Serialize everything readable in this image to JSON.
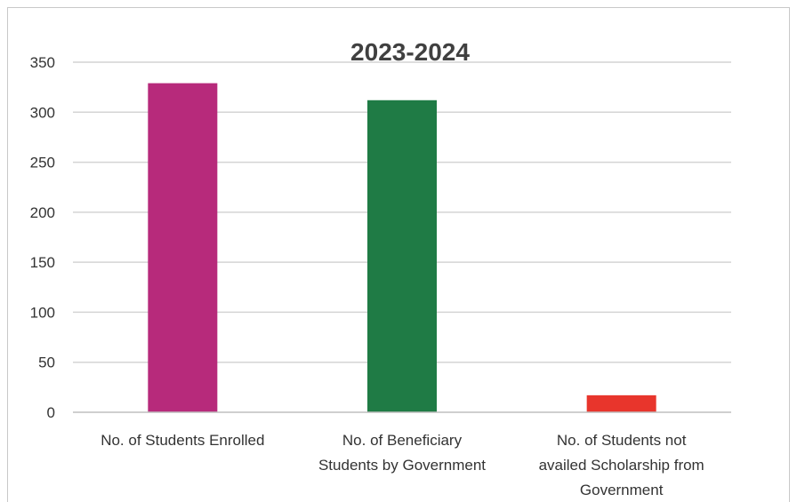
{
  "chart_data": {
    "type": "bar",
    "title": "2023-2024",
    "categories": [
      [
        "No. of Students Enrolled"
      ],
      [
        "No. of Beneficiary",
        "Students by Government"
      ],
      [
        "No. of Students not",
        "availed Scholarship from",
        "Government"
      ]
    ],
    "values": [
      329,
      312,
      17
    ],
    "colors": [
      "#b72a7b",
      "#1f7b45",
      "#e8352c"
    ],
    "ylim": [
      0,
      350
    ],
    "yticks": [
      0,
      50,
      100,
      150,
      200,
      250,
      300,
      350
    ],
    "grid": true,
    "legend": "none"
  }
}
